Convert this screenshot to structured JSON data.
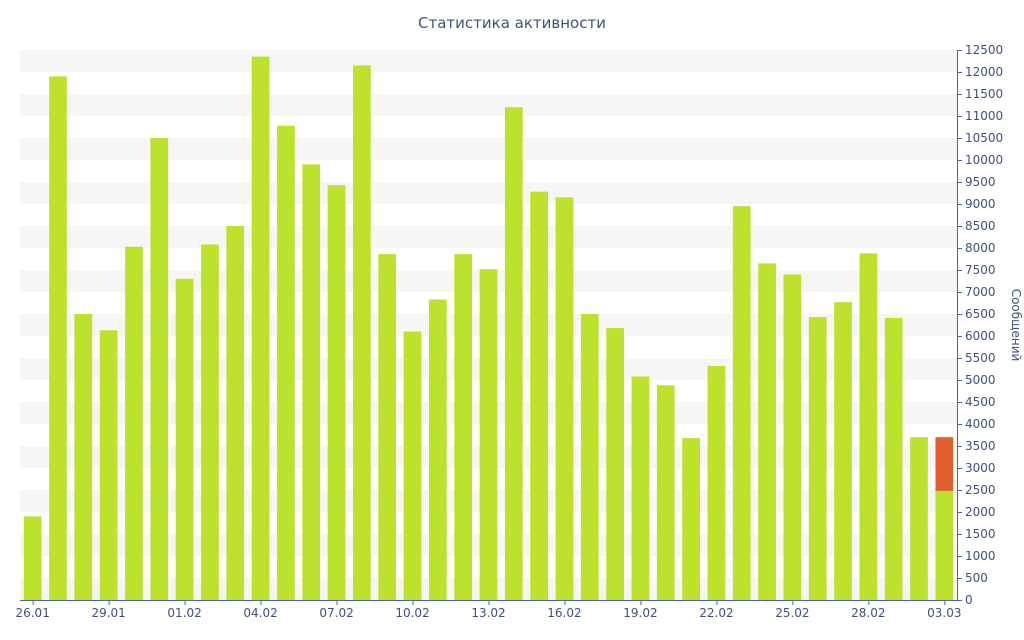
{
  "chart_data": {
    "type": "bar",
    "title": "Статистика активности",
    "ylabel": "Сообщений",
    "xlabel": "",
    "ylim": [
      0,
      12500
    ],
    "y_ticks": [
      0,
      500,
      1000,
      1500,
      2000,
      2500,
      3000,
      3500,
      4000,
      4500,
      5000,
      5500,
      6000,
      6500,
      7000,
      7500,
      8000,
      8500,
      9000,
      9500,
      10000,
      10500,
      11000,
      11500,
      12000,
      12500
    ],
    "y_axis_side": "right",
    "grid": "alternating horizontal bands",
    "x_tick_labels": [
      "26.01",
      "29.01",
      "01.02",
      "04.02",
      "07.02",
      "10.02",
      "13.02",
      "16.02",
      "19.02",
      "22.02",
      "25.02",
      "28.02",
      "03.03"
    ],
    "categories": [
      "26.01",
      "27.01",
      "28.01",
      "29.01",
      "30.01",
      "31.01",
      "01.02",
      "02.02",
      "03.02",
      "04.02",
      "05.02",
      "06.02",
      "07.02",
      "08.02",
      "09.02",
      "10.02",
      "11.02",
      "12.02",
      "13.02",
      "14.02",
      "15.02",
      "16.02",
      "17.02",
      "18.02",
      "19.02",
      "20.02",
      "21.02",
      "22.02",
      "23.02",
      "24.02",
      "25.02",
      "26.02",
      "27.02",
      "28.02",
      "01.03",
      "02.03",
      "03.03"
    ],
    "series": [
      {
        "color": "#bce22e",
        "values": [
          1900,
          11900,
          6500,
          6130,
          8030,
          10500,
          7300,
          8080,
          8500,
          12350,
          10780,
          9900,
          9430,
          12150,
          7860,
          6100,
          6830,
          7860,
          7520,
          11200,
          9280,
          9150,
          6500,
          6180,
          5080,
          4880,
          3680,
          5320,
          8950,
          7650,
          7400,
          6430,
          6770,
          7880,
          6410,
          3700,
          2480
        ]
      },
      {
        "color": "#e05f2c",
        "values": [
          0,
          0,
          0,
          0,
          0,
          0,
          0,
          0,
          0,
          0,
          0,
          0,
          0,
          0,
          0,
          0,
          0,
          0,
          0,
          0,
          0,
          0,
          0,
          0,
          0,
          0,
          0,
          0,
          0,
          0,
          0,
          0,
          0,
          0,
          0,
          0,
          1220
        ]
      }
    ],
    "colors": {
      "axis": "#4f64a0",
      "text": "#3f5182",
      "band": "#f6f6f6"
    }
  }
}
